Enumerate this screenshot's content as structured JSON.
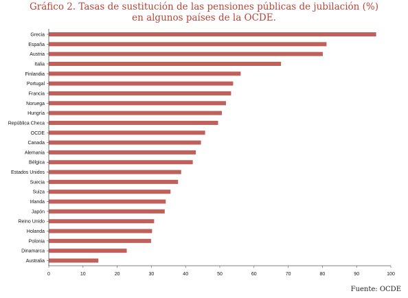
{
  "title_line1": "Gráfico 2. Tasas de sustitución de las pensiones públicas de jubilación (%)",
  "title_line2": "en algunos países de la OCDE.",
  "source": "Fuente: OCDE",
  "colors": {
    "bar": "#c0605a",
    "title": "#b84437",
    "axis": "#555555"
  },
  "chart_data": {
    "type": "bar",
    "orientation": "horizontal",
    "title": "Gráfico 2. Tasas de sustitución de las pensiones públicas de jubilación (%) en algunos países de la OCDE.",
    "categories": [
      "Grecia",
      "España",
      "Austria",
      "Italia",
      "Finlandia",
      "Portugal",
      "Francia",
      "Noruega",
      "Hungría",
      "República Checa",
      "OCDE",
      "Canada",
      "Alemania",
      "Bélgica",
      "Estados Unidos",
      "Suecia",
      "Suiza",
      "Irlanda",
      "Japón",
      "Reino Unido",
      "Holanda",
      "Polonia",
      "Dinamarca",
      "Australia"
    ],
    "values": [
      95.7,
      81.2,
      80.1,
      67.9,
      56.1,
      53.9,
      53.3,
      51.8,
      50.6,
      49.5,
      45.7,
      44.5,
      43.0,
      42.1,
      38.7,
      37.8,
      35.6,
      34.2,
      33.9,
      30.8,
      30.2,
      29.9,
      22.8,
      14.5
    ],
    "xlim": [
      0,
      100
    ],
    "xticks": [
      0,
      10,
      20,
      30,
      40,
      50,
      60,
      70,
      80,
      90,
      100
    ],
    "grid": false,
    "legend": "none",
    "xlabel": "",
    "ylabel": ""
  }
}
